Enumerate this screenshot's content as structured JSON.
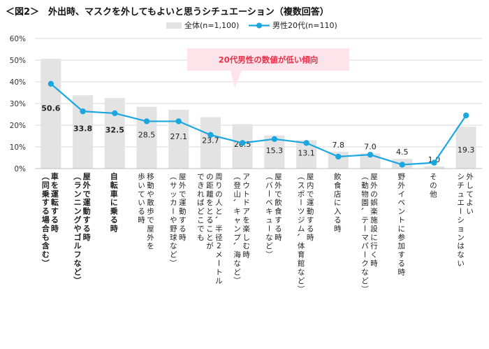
{
  "title": "＜図2＞　外出時、マスクを外してもよいと思うシチュエーション（複数回答）",
  "callout": "20代男性の数値が低い傾向",
  "colors": {
    "bar": "#e3e3e3",
    "line": "#1aa7e0",
    "callout_bg": "#fce4ea",
    "callout_text": "#e8304a",
    "grid": "#d9d9d9"
  },
  "chart_data": {
    "type": "bar",
    "legend_position": "top",
    "grid": true,
    "ylim": [
      0,
      60
    ],
    "yticks": [
      "0%",
      "10%",
      "20%",
      "30%",
      "40%",
      "50%",
      "60%"
    ],
    "categories": [
      [
        "車を運転する時",
        "（同乗する場合も含む）"
      ],
      [
        "屋外で運動する時",
        "（ランニングやゴルフなど）"
      ],
      [
        "自転車に乗る時"
      ],
      [
        "移動や散歩で屋外を",
        "歩いている時"
      ],
      [
        "屋外で運動する時",
        "（サッカーや野球など）"
      ],
      [
        "周りの人と、半径2メートル",
        "の距離をとることが",
        "できればどこでも"
      ],
      [
        "アウトドアを楽しむ時",
        "（登山、キャンプ、海など）"
      ],
      [
        "屋外で飲食する時",
        "（バーベキューなど）"
      ],
      [
        "屋内で運動する時",
        "（スポーツジム、体育館など）"
      ],
      [
        "飲食店に入る時"
      ],
      [
        "屋外の娯楽施設に行く時",
        "（動物園、テーマパークなど）"
      ],
      [
        "野外イベントに参加する時"
      ],
      [
        "その他"
      ],
      [
        "外してよい",
        "シチュエーションはない"
      ]
    ],
    "bold_categories": [
      0,
      1,
      2
    ],
    "series": [
      {
        "name": "全体(n=1,100)",
        "kind": "bar",
        "values": [
          50.6,
          33.8,
          32.5,
          28.5,
          27.1,
          23.7,
          20.5,
          15.3,
          13.1,
          7.8,
          7.0,
          4.5,
          1.0,
          19.3
        ]
      },
      {
        "name": "男性20代(n=110)",
        "kind": "line",
        "values": [
          39.1,
          26.4,
          25.5,
          21.8,
          21.8,
          15.5,
          11.8,
          13.6,
          11.8,
          5.5,
          6.4,
          1.8,
          2.7,
          24.5
        ]
      }
    ],
    "value_labels": [
      "50.6",
      "33.8",
      "32.5",
      "28.5",
      "27.1",
      "23.7",
      "20.5",
      "15.3",
      "13.1",
      "7.8",
      "7.0",
      "4.5",
      "1.0",
      "19.3"
    ]
  }
}
